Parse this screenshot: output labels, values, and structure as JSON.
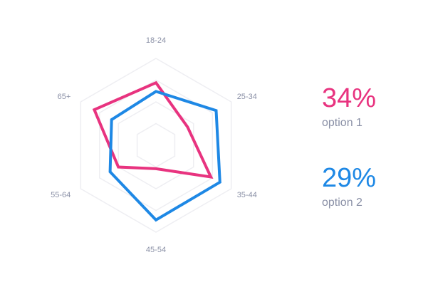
{
  "chart_data": {
    "type": "radar",
    "categories": [
      "18-24",
      "25-34",
      "35-44",
      "45-54",
      "55-64",
      "65+"
    ],
    "rmax": 100,
    "grid_levels": [
      25,
      50,
      75,
      100
    ],
    "grid_color": "#eeeef2",
    "series": [
      {
        "name": "option 1",
        "color": "#e8337f",
        "values": [
          72,
          42,
          73,
          27,
          50,
          82
        ]
      },
      {
        "name": "option 2",
        "color": "#1e88e5",
        "values": [
          62,
          80,
          85,
          86,
          61,
          59
        ]
      }
    ]
  },
  "legend": [
    {
      "value": "34%",
      "label": "option 1",
      "color": "#e8337f"
    },
    {
      "value": "29%",
      "label": "option 2",
      "color": "#1e88e5"
    }
  ]
}
